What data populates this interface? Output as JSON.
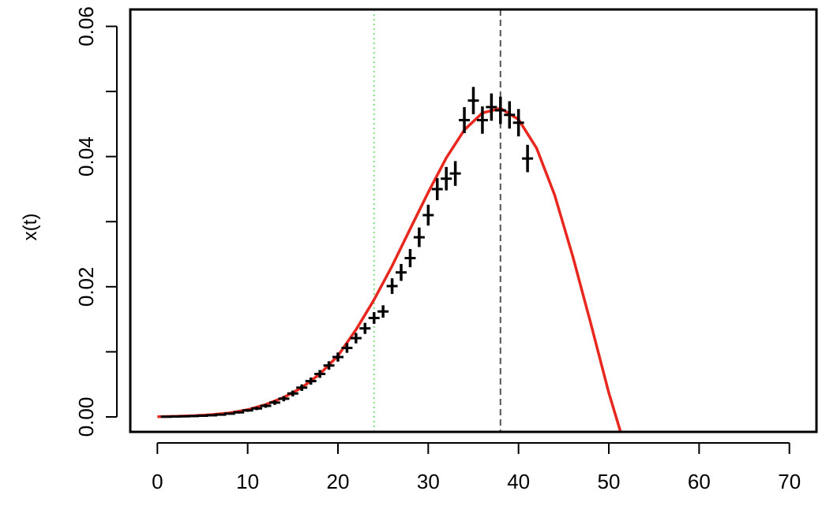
{
  "chart_data": {
    "type": "scatter",
    "title": "",
    "xlabel": "",
    "ylabel": "x(t)",
    "xlim": [
      -3,
      73
    ],
    "ylim": [
      -0.0023,
      0.0626
    ],
    "x_ticks": [
      0,
      10,
      20,
      30,
      40,
      50,
      60,
      70
    ],
    "x_tick_labels": [
      "0",
      "10",
      "20",
      "30",
      "40",
      "50",
      "60",
      "70"
    ],
    "y_ticks": [
      0,
      0.01,
      0.02,
      0.03,
      0.04,
      0.05,
      0.06
    ],
    "y_tick_labels": [
      "0.00",
      "",
      "0.02",
      "",
      "0.04",
      "",
      "0.06"
    ],
    "grid": false,
    "colors": {
      "points": "#000000",
      "curve": "#e8281e",
      "green_line": "#7fe07f",
      "dashed_line": "#555555"
    },
    "vertical_lines": [
      {
        "x": 24,
        "style": "dotted",
        "color": "#7fe07f"
      },
      {
        "x": 38,
        "style": "dashed",
        "color": "#555555"
      }
    ],
    "series": [
      {
        "type": "scatter_errorbar",
        "x": [
          1,
          2,
          3,
          4,
          5,
          6,
          7,
          8,
          9,
          10,
          11,
          12,
          13,
          14,
          15,
          16,
          17,
          18,
          19,
          20,
          21,
          22,
          23,
          24,
          25,
          26,
          27,
          28,
          29,
          30,
          31,
          32,
          33,
          34,
          35,
          36,
          37,
          38,
          39,
          40,
          41
        ],
        "y": [
          3e-05,
          6e-05,
          9e-05,
          0.00013,
          0.00018,
          0.00025,
          0.00035,
          0.0005,
          0.0007,
          0.001,
          0.0013,
          0.0017,
          0.0022,
          0.0028,
          0.0036,
          0.0045,
          0.0055,
          0.0066,
          0.0079,
          0.0092,
          0.0106,
          0.0121,
          0.0136,
          0.0152,
          0.0162,
          0.0201,
          0.0222,
          0.0244,
          0.0276,
          0.031,
          0.035,
          0.0366,
          0.0374,
          0.0456,
          0.0486,
          0.0456,
          0.0476,
          0.0471,
          0.0464,
          0.0452,
          0.0397
        ],
        "err": [
          3e-05,
          4e-05,
          5e-05,
          6e-05,
          8e-05,
          0.0001,
          0.00012,
          0.00015,
          0.00018,
          0.00022,
          0.00026,
          0.0003,
          0.00035,
          0.0004,
          0.00045,
          0.0005,
          0.00055,
          0.0006,
          0.00065,
          0.0007,
          0.00075,
          0.0008,
          0.00085,
          0.0009,
          0.00095,
          0.0012,
          0.0013,
          0.0014,
          0.0015,
          0.0016,
          0.0017,
          0.0018,
          0.0019,
          0.002,
          0.0021,
          0.0021,
          0.0021,
          0.0021,
          0.0021,
          0.0021,
          0.0021
        ]
      },
      {
        "type": "line",
        "x": [
          0,
          2,
          4,
          6,
          8,
          10,
          12,
          14,
          16,
          18,
          20,
          22,
          24,
          26,
          28,
          30,
          32,
          34,
          36,
          38,
          40,
          42,
          44,
          46,
          48,
          50,
          51.3
        ],
        "y": [
          2e-05,
          8e-05,
          0.00018,
          0.00035,
          0.0006,
          0.0011,
          0.0019,
          0.003,
          0.0045,
          0.0066,
          0.0094,
          0.0134,
          0.018,
          0.0232,
          0.0289,
          0.0345,
          0.0398,
          0.0441,
          0.0467,
          0.0474,
          0.0457,
          0.0413,
          0.0341,
          0.0247,
          0.0144,
          0.0037,
          -0.0023
        ]
      }
    ]
  }
}
